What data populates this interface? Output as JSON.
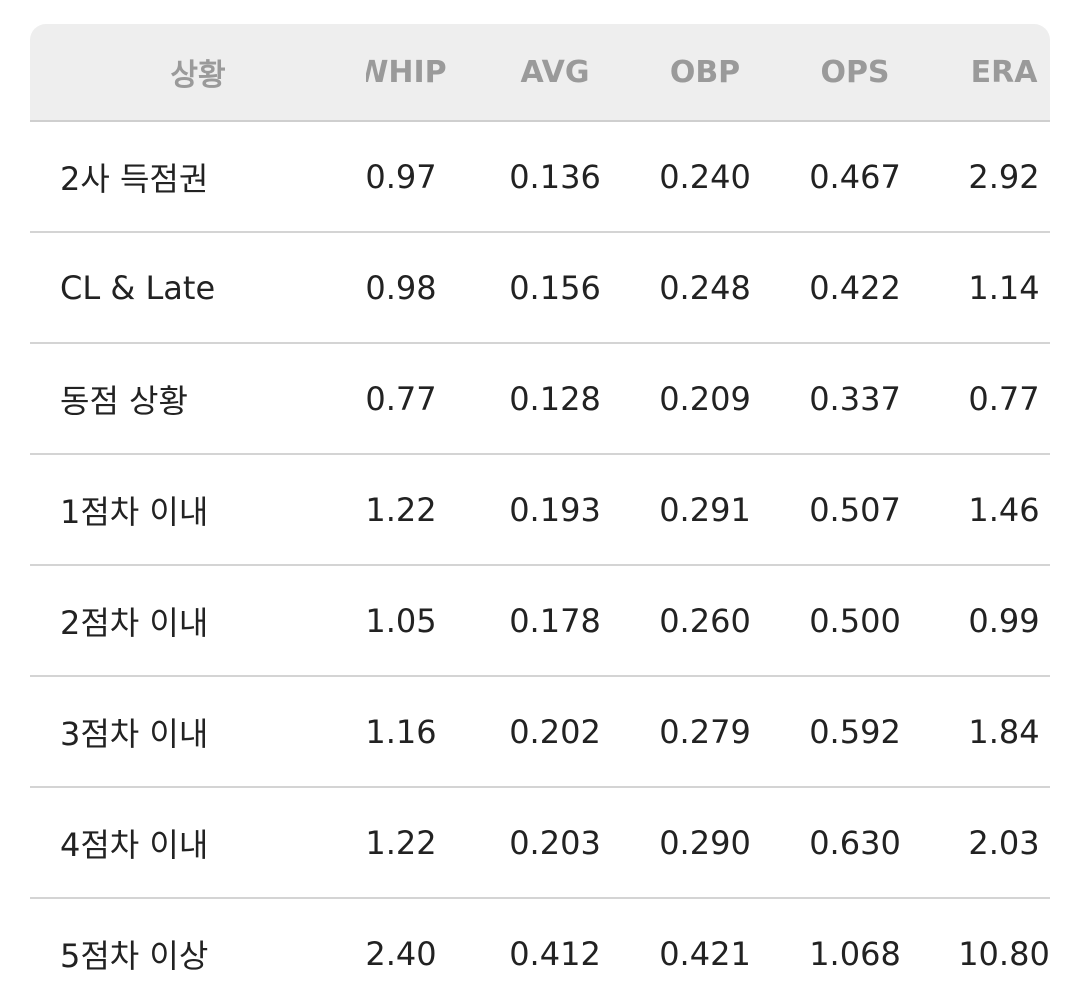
{
  "header": {
    "columns": [
      "상황",
      "WHIP",
      "AVG",
      "OBP",
      "OPS",
      "ERA"
    ]
  },
  "table": {
    "rows": [
      [
        "2사 득점권",
        "0.97",
        "0.136",
        "0.240",
        "0.467",
        "2.92"
      ],
      [
        "CL & Late",
        "0.98",
        "0.156",
        "0.248",
        "0.422",
        "1.14"
      ],
      [
        "동점 상황",
        "0.77",
        "0.128",
        "0.209",
        "0.337",
        "0.77"
      ],
      [
        "1점차 이내",
        "1.22",
        "0.193",
        "0.291",
        "0.507",
        "1.46"
      ],
      [
        "2점차 이내",
        "1.05",
        "0.178",
        "0.260",
        "0.500",
        "0.99"
      ],
      [
        "3점차 이내",
        "1.16",
        "0.202",
        "0.279",
        "0.592",
        "1.84"
      ],
      [
        "4점차 이내",
        "1.22",
        "0.203",
        "0.290",
        "0.630",
        "2.03"
      ],
      [
        "5점차 이상",
        "2.40",
        "0.412",
        "0.421",
        "1.068",
        "10.80"
      ]
    ]
  }
}
